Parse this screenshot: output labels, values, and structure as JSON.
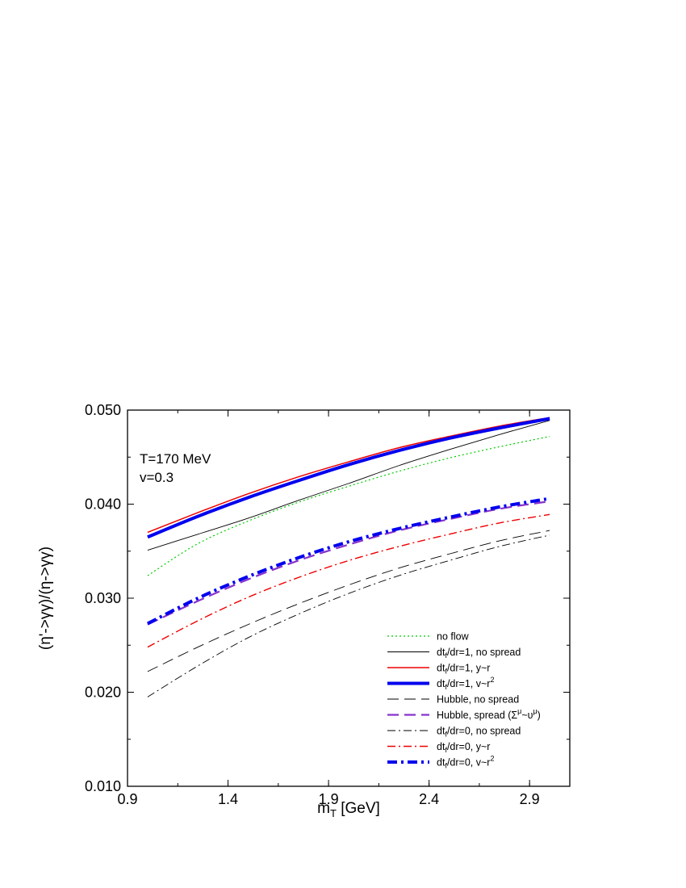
{
  "chart_data": {
    "type": "line",
    "xlabel": "m",
    "xlabel_sub": "T",
    "xlabel_unit": " [GeV]",
    "ylabel": "(η'->γγ)/(η->γγ)",
    "xlim": [
      0.9,
      3.1
    ],
    "ylim": [
      0.01,
      0.05
    ],
    "xticks": [
      "0.9",
      "1.4",
      "1.9",
      "2.4",
      "2.9"
    ],
    "yticks": [
      "0.010",
      "0.020",
      "0.030",
      "0.040",
      "0.050"
    ],
    "annotations": [
      "T=170 MeV",
      "v=0.3"
    ],
    "legend_position": "bottom-right",
    "grid": false,
    "x": [
      1.0,
      1.25,
      1.5,
      1.75,
      2.0,
      2.25,
      2.5,
      2.75,
      3.0
    ],
    "series": [
      {
        "name": "no flow",
        "label": {
          "pre": "no flow",
          "sub": "",
          "mid": "",
          "sup": "",
          "post": ""
        },
        "color": "#00cc00",
        "width": 1.2,
        "dash": "2,3",
        "values": [
          0.0324,
          0.0358,
          0.0382,
          0.0402,
          0.0419,
          0.0435,
          0.0449,
          0.0461,
          0.0472
        ]
      },
      {
        "name": "dtf/dr=1, no spread",
        "label": {
          "pre": "dt",
          "sub": "f",
          "mid": "/dr=1, no spread",
          "sup": "",
          "post": ""
        },
        "color": "#000000",
        "width": 0.9,
        "dash": "",
        "values": [
          0.0351,
          0.0368,
          0.0385,
          0.0404,
          0.0422,
          0.0441,
          0.0458,
          0.0474,
          0.0489
        ]
      },
      {
        "name": "dtf/dr=1, y~r",
        "label": {
          "pre": "dt",
          "sub": "f",
          "mid": "/dr=1, y~r",
          "sup": "",
          "post": ""
        },
        "color": "#ee0000",
        "width": 1.5,
        "dash": "",
        "values": [
          0.037,
          0.0391,
          0.0411,
          0.0429,
          0.0445,
          0.046,
          0.0472,
          0.0483,
          0.0492
        ]
      },
      {
        "name": "dtf/dr=1, v~r2",
        "label": {
          "pre": "dt",
          "sub": "f",
          "mid": "/dr=1, v~r",
          "sup": "2",
          "post": ""
        },
        "color": "#0000ee",
        "width": 4,
        "dash": "",
        "values": [
          0.0365,
          0.0387,
          0.0407,
          0.0425,
          0.0442,
          0.0457,
          0.047,
          0.0481,
          0.0491
        ]
      },
      {
        "name": "Hubble, no spread",
        "label": {
          "pre": "Hubble, no spread",
          "sub": "",
          "mid": "",
          "sup": "",
          "post": ""
        },
        "color": "#000000",
        "width": 0.9,
        "dash": "14,7",
        "values": [
          0.0222,
          0.0248,
          0.0272,
          0.0294,
          0.0314,
          0.0332,
          0.0347,
          0.0361,
          0.0372
        ]
      },
      {
        "name": "Hubble, spread (Σμ~υμ)",
        "label": {
          "pre": "Hubble, spread (Σ",
          "sub": "",
          "mid": "",
          "sup": "μ",
          "post": "~υ",
          "sup2": "μ",
          "tail": ")"
        },
        "color": "#8833cc",
        "width": 2.2,
        "dash": "14,7",
        "values": [
          0.0272,
          0.0297,
          0.032,
          0.034,
          0.0357,
          0.0372,
          0.0384,
          0.0395,
          0.0403
        ]
      },
      {
        "name": "dtf/dr=0, no spread",
        "label": {
          "pre": "dt",
          "sub": "f",
          "mid": "/dr=0, no spread",
          "sup": "",
          "post": ""
        },
        "color": "#000000",
        "width": 0.9,
        "dash": "10,4,2,4",
        "values": [
          0.0195,
          0.0228,
          0.0258,
          0.0283,
          0.0305,
          0.0324,
          0.034,
          0.0355,
          0.0367
        ]
      },
      {
        "name": "dtf/dr=0, y~r",
        "label": {
          "pre": "dt",
          "sub": "f",
          "mid": "/dr=0, y~r",
          "sup": "",
          "post": ""
        },
        "color": "#ee0000",
        "width": 1.4,
        "dash": "10,4,2,4",
        "values": [
          0.0248,
          0.0276,
          0.0301,
          0.0322,
          0.034,
          0.0355,
          0.0368,
          0.038,
          0.0389
        ]
      },
      {
        "name": "dtf/dr=0, v~r2",
        "label": {
          "pre": "dt",
          "sub": "f",
          "mid": "/dr=0, v~r",
          "sup": "2",
          "post": ""
        },
        "color": "#0000ee",
        "width": 4,
        "dash": "12,5,3,5",
        "values": [
          0.0273,
          0.03,
          0.0323,
          0.0343,
          0.036,
          0.0374,
          0.0386,
          0.0397,
          0.0406
        ]
      }
    ]
  }
}
